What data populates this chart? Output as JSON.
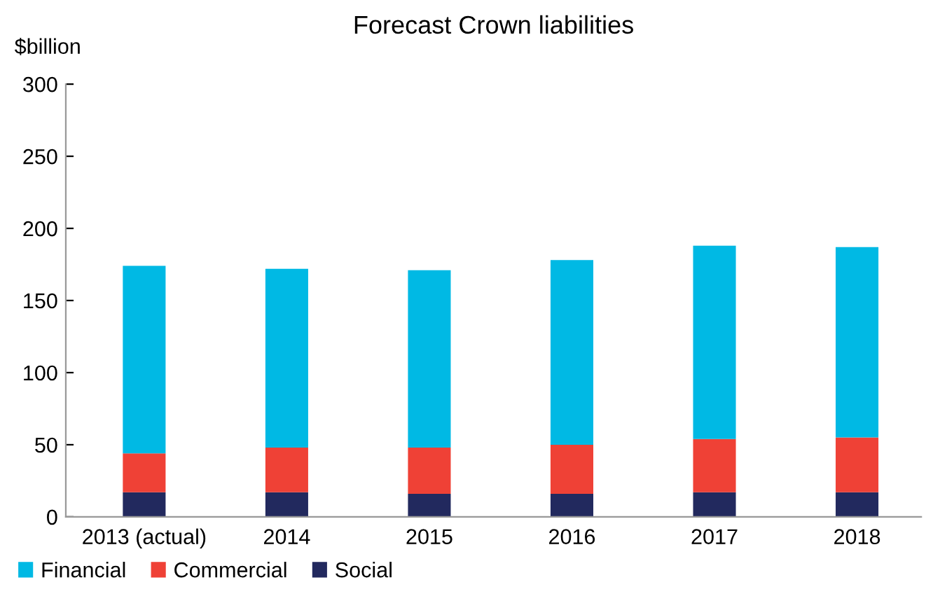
{
  "chart_data": {
    "type": "bar",
    "title": "Forecast Crown liabilities",
    "ylabel": "$billion",
    "stacked": true,
    "categories": [
      "2013 (actual)",
      "2014",
      "2015",
      "2016",
      "2017",
      "2018"
    ],
    "series": [
      {
        "name": "Social",
        "color": "#22295e",
        "values": [
          17,
          17,
          16,
          16,
          17,
          17
        ]
      },
      {
        "name": "Commercial",
        "color": "#ef4136",
        "values": [
          27,
          31,
          32,
          34,
          37,
          38
        ]
      },
      {
        "name": "Financial",
        "color": "#00b9e4",
        "values": [
          130,
          124,
          123,
          128,
          134,
          132
        ]
      }
    ],
    "ylim": [
      0,
      300
    ],
    "yticks": [
      0,
      50,
      100,
      150,
      200,
      250,
      300
    ],
    "grid": false,
    "legend": "bottom left"
  }
}
